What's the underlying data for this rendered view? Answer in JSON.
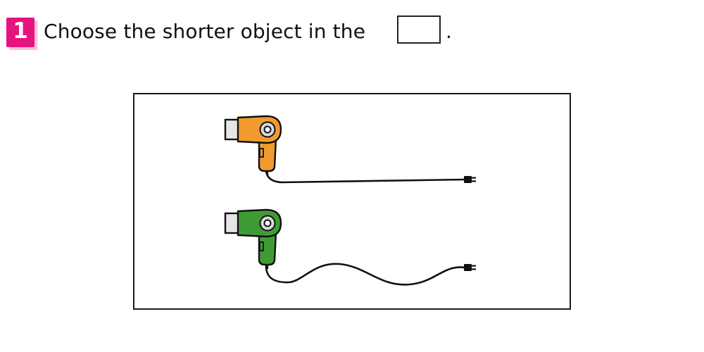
{
  "question": {
    "number": "1",
    "prompt": "Choose the shorter object in the",
    "period": ".",
    "answer_value": ""
  },
  "items": [
    {
      "id": "top",
      "object": "hair dryer",
      "body_color": "#f29a2e",
      "cord": "straight"
    },
    {
      "id": "bottom",
      "object": "hair dryer",
      "body_color": "#3f9c35",
      "cord": "wavy"
    }
  ],
  "colors": {
    "badge": "#e5147e",
    "badge_shadow": "#f6bfd9",
    "nozzle": "#e6e6e6",
    "line": "#111111"
  }
}
